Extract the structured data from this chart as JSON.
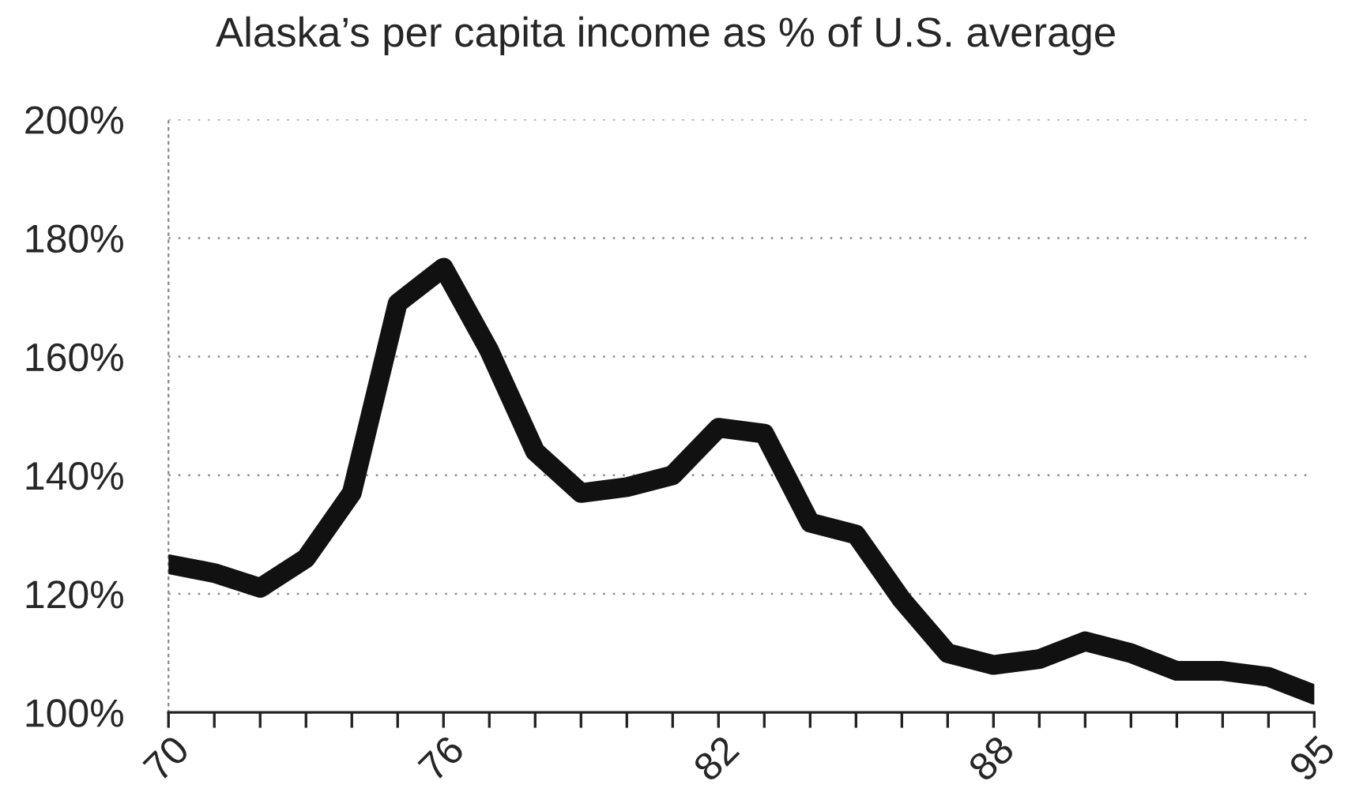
{
  "chart_data": {
    "type": "line",
    "title": "Alaska’s per capita income as % of U.S. average",
    "x": [
      70,
      71,
      72,
      73,
      74,
      75,
      76,
      77,
      78,
      79,
      80,
      81,
      82,
      83,
      84,
      85,
      86,
      87,
      88,
      89,
      90,
      91,
      92,
      93,
      94,
      95
    ],
    "series": [
      {
        "color": "#111111",
        "values": [
          125,
          123.5,
          121,
          126,
          137,
          169,
          175,
          161,
          144,
          137,
          138,
          140,
          148,
          147,
          132,
          130,
          119,
          110,
          108,
          109,
          112,
          110,
          107,
          107,
          106,
          103
        ]
      }
    ],
    "xlim": [
      70,
      95
    ],
    "ylim": [
      100,
      200
    ],
    "xticks": [
      {
        "value": 70,
        "label": "70"
      },
      {
        "value": 71,
        "label": null
      },
      {
        "value": 72,
        "label": null
      },
      {
        "value": 73,
        "label": null
      },
      {
        "value": 74,
        "label": null
      },
      {
        "value": 75,
        "label": null
      },
      {
        "value": 76,
        "label": "76"
      },
      {
        "value": 77,
        "label": null
      },
      {
        "value": 78,
        "label": null
      },
      {
        "value": 79,
        "label": null
      },
      {
        "value": 80,
        "label": null
      },
      {
        "value": 81,
        "label": null
      },
      {
        "value": 82,
        "label": "82"
      },
      {
        "value": 83,
        "label": null
      },
      {
        "value": 84,
        "label": null
      },
      {
        "value": 85,
        "label": null
      },
      {
        "value": 86,
        "label": null
      },
      {
        "value": 87,
        "label": null
      },
      {
        "value": 88,
        "label": "88"
      },
      {
        "value": 89,
        "label": null
      },
      {
        "value": 90,
        "label": null
      },
      {
        "value": 91,
        "label": null
      },
      {
        "value": 92,
        "label": null
      },
      {
        "value": 93,
        "label": null
      },
      {
        "value": 94,
        "label": null
      },
      {
        "value": 95,
        "label": "95"
      }
    ],
    "yticks": [
      {
        "value": 100,
        "label": "100%"
      },
      {
        "value": 120,
        "label": "120%"
      },
      {
        "value": 140,
        "label": "140%"
      },
      {
        "value": 160,
        "label": "160%"
      },
      {
        "value": 180,
        "label": "180%"
      },
      {
        "value": 200,
        "label": "200%"
      }
    ],
    "grid": "y",
    "marker": "none",
    "line_style": "solid"
  }
}
